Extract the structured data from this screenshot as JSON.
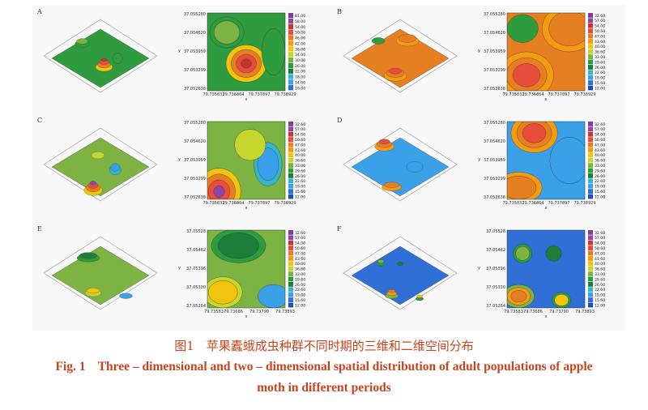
{
  "panels": [
    {
      "letter": "A",
      "y_ticks": [
        "37.055280",
        "37.054620",
        "37.053959",
        "37.053299",
        "37.052638"
      ],
      "x_ticks": [
        "79.735832",
        "79.736864",
        "79.737897",
        "79.738929"
      ],
      "legend": [
        "61.00",
        "58.00",
        "54.00",
        "50.00",
        "46.00",
        "42.00",
        "38.00",
        "34.00",
        "30.00",
        "26.00",
        "22.00",
        "18.00",
        "14.00",
        "10.00"
      ]
    },
    {
      "letter": "B",
      "y_ticks": [
        "37.055280",
        "37.054620",
        "37.053959",
        "37.053299",
        "37.052638"
      ],
      "x_ticks": [
        "79.735832",
        "79.736864",
        "79.737897",
        "79.738929"
      ],
      "legend": [
        "32.60",
        "57.00",
        "54.00",
        "50.60",
        "47.00",
        "43.60",
        "40.00",
        "36.60",
        "33.00",
        "29.60",
        "26.00",
        "22.60",
        "19.00",
        "15.60",
        "12.00"
      ]
    },
    {
      "letter": "C",
      "y_ticks": [
        "37.055280",
        "37.054620",
        "37.053959",
        "37.053299",
        "37.052638"
      ],
      "x_ticks": [
        "79.735832",
        "79.736864",
        "79.737897",
        "79.738929"
      ],
      "legend": [
        "32.60",
        "57.00",
        "54.00",
        "50.60",
        "47.00",
        "43.60",
        "40.00",
        "36.60",
        "33.00",
        "29.60",
        "26.00",
        "22.60",
        "19.00",
        "15.60",
        "12.00"
      ]
    },
    {
      "letter": "D",
      "y_ticks": [
        "37.055280",
        "37.054620",
        "37.053959",
        "37.053299",
        "37.052638"
      ],
      "x_ticks": [
        "79.735832",
        "79.736864",
        "79.737897",
        "79.738929"
      ],
      "legend": [
        "32.60",
        "57.00",
        "54.00",
        "50.60",
        "47.00",
        "43.60",
        "40.00",
        "36.60",
        "33.00",
        "29.60",
        "26.00",
        "22.60",
        "19.00",
        "15.60",
        "12.00"
      ]
    },
    {
      "letter": "E",
      "y_ticks": [
        "37.05528",
        "37.05462",
        "37.05396",
        "37.05330",
        "37.05264"
      ],
      "x_ticks": [
        "79.73583",
        "79.73686",
        "79.73790",
        "79.73893"
      ],
      "legend": [
        "32.60",
        "57.00",
        "54.00",
        "50.60",
        "47.00",
        "43.60",
        "40.00",
        "36.60",
        "33.00",
        "29.60",
        "26.00",
        "22.60",
        "19.00",
        "15.60",
        "12.00"
      ]
    },
    {
      "letter": "F",
      "y_ticks": [
        "37.05528",
        "37.05462",
        "37.05396",
        "37.05330",
        "37.05264"
      ],
      "x_ticks": [
        "79.73583",
        "79.73686",
        "79.73790",
        "79.73893"
      ],
      "legend": [
        "32.60",
        "57.00",
        "54.00",
        "50.60",
        "47.00",
        "43.60",
        "40.00",
        "36.60",
        "33.00",
        "29.60",
        "26.00",
        "22.60",
        "19.00",
        "15.60",
        "12.00"
      ]
    }
  ],
  "axis": {
    "x_label": "x",
    "y_label": "y"
  },
  "palette": [
    "#7b3f98",
    "#8e44ad",
    "#c0392b",
    "#e74c3c",
    "#e67e22",
    "#f39c12",
    "#f1c40f",
    "#c5d62e",
    "#7cb342",
    "#2e9b3e",
    "#1e7d3a",
    "#36b5c9",
    "#3aa0e8",
    "#2f6fd6",
    "#1f4fb5"
  ],
  "caption": {
    "cn": "图1　苹果蠹蛾成虫种群不同时期的三维和二维空间分布",
    "en_line1": "Fig. 1    Three – dimensional and two – dimensional spatial distribution of adult populations of apple",
    "en_line2": "moth in different periods"
  }
}
